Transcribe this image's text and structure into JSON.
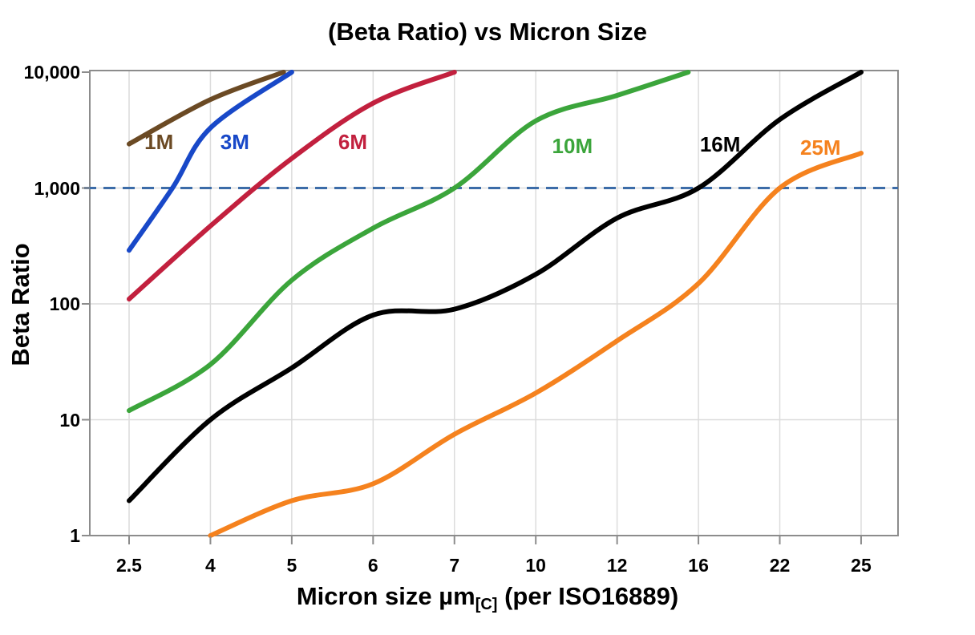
{
  "title": "(Beta Ratio) vs Micron Size",
  "axes": {
    "y_label": "Beta Ratio",
    "x_label_prefix": "Micron size µm",
    "x_label_subscript": "[C]",
    "x_label_suffix": " (per ISO16889)",
    "y_ticks": [
      "10,000",
      "1,000",
      "100",
      "10",
      "1"
    ],
    "x_ticks": [
      "2.5",
      "4",
      "5",
      "6",
      "7",
      "10",
      "12",
      "16",
      "22",
      "25"
    ]
  },
  "chart_data": {
    "type": "line",
    "title": "(Beta Ratio) vs Micron Size",
    "xlabel": "Micron size µm[C] (per ISO16889)",
    "ylabel": "Beta Ratio",
    "x_scale": "categorical",
    "y_scale": "log",
    "ylim": [
      1,
      10000
    ],
    "y_tick_values": [
      1,
      10,
      100,
      1000,
      10000
    ],
    "categories": [
      2.5,
      4,
      5,
      6,
      7,
      10,
      12,
      16,
      22,
      25
    ],
    "grid": true,
    "legend_position": "inline-labels",
    "reference_line": {
      "beta": 1000,
      "style": "dashed",
      "color": "#3C6CA8"
    },
    "series": [
      {
        "name": "1M",
        "color": "#6B4A24",
        "label_at": {
          "micron": 3.05,
          "beta": 2500
        },
        "points": [
          [
            2.5,
            2400
          ],
          [
            4,
            5800
          ],
          [
            4.9,
            10000
          ]
        ]
      },
      {
        "name": "3M",
        "color": "#1848C8",
        "label_at": {
          "micron": 4.3,
          "beta": 2500
        },
        "points": [
          [
            2.5,
            290
          ],
          [
            3.3,
            1000
          ],
          [
            4,
            3300
          ],
          [
            5,
            10000
          ]
        ]
      },
      {
        "name": "6M",
        "color": "#C2203E",
        "label_at": {
          "micron": 5.75,
          "beta": 2500
        },
        "points": [
          [
            2.5,
            110
          ],
          [
            4,
            470
          ],
          [
            5,
            1800
          ],
          [
            6,
            5400
          ],
          [
            7,
            10000
          ]
        ]
      },
      {
        "name": "10M",
        "color": "#3BA53B",
        "label_at": {
          "micron": 10.9,
          "beta": 2300
        },
        "points": [
          [
            2.5,
            12
          ],
          [
            4,
            30
          ],
          [
            5,
            160
          ],
          [
            6,
            450
          ],
          [
            7,
            1000
          ],
          [
            10,
            3800
          ],
          [
            12,
            6300
          ],
          [
            15.5,
            10000
          ]
        ]
      },
      {
        "name": "16M",
        "color": "#000000",
        "label_at": {
          "micron": 17.6,
          "beta": 2400
        },
        "points": [
          [
            2.5,
            2
          ],
          [
            4,
            10
          ],
          [
            5,
            28
          ],
          [
            6,
            80
          ],
          [
            7,
            90
          ],
          [
            10,
            180
          ],
          [
            12,
            550
          ],
          [
            16,
            1000
          ],
          [
            22,
            3900
          ],
          [
            25,
            10000
          ]
        ]
      },
      {
        "name": "25M",
        "color": "#F5821E",
        "label_at": {
          "micron": 23.5,
          "beta": 2250
        },
        "points": [
          [
            4,
            1
          ],
          [
            5,
            2
          ],
          [
            6,
            2.8
          ],
          [
            7,
            7.5
          ],
          [
            10,
            17
          ],
          [
            12,
            48
          ],
          [
            16,
            150
          ],
          [
            22,
            1000
          ],
          [
            25,
            2000
          ]
        ]
      }
    ]
  }
}
